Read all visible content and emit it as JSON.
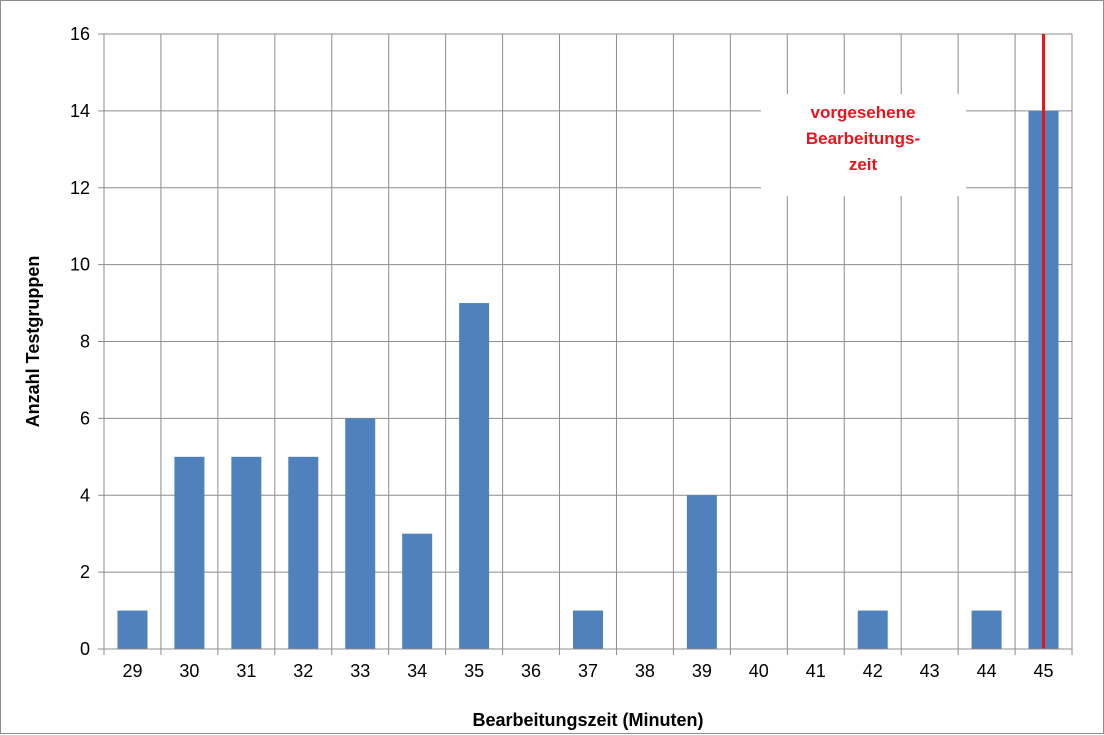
{
  "chart_data": {
    "type": "bar",
    "categories": [
      "29",
      "30",
      "31",
      "32",
      "33",
      "34",
      "35",
      "36",
      "37",
      "38",
      "39",
      "40",
      "41",
      "42",
      "43",
      "44",
      "45"
    ],
    "values": [
      1,
      5,
      5,
      5,
      6,
      3,
      9,
      0,
      1,
      0,
      4,
      0,
      0,
      1,
      0,
      1,
      14
    ],
    "xlabel": "Bearbeitungszeit (Minuten)",
    "ylabel": "Anzahl Testgruppen",
    "ylim": [
      0,
      16
    ],
    "yticks": [
      0,
      2,
      4,
      6,
      8,
      10,
      12,
      14,
      16
    ],
    "grid": true,
    "bar_color": "#4f81bd",
    "reference_line": {
      "category": "45",
      "color": "#e8141c",
      "label": [
        "vorgesehene",
        "Bearbeitungs-",
        "zeit"
      ]
    }
  }
}
